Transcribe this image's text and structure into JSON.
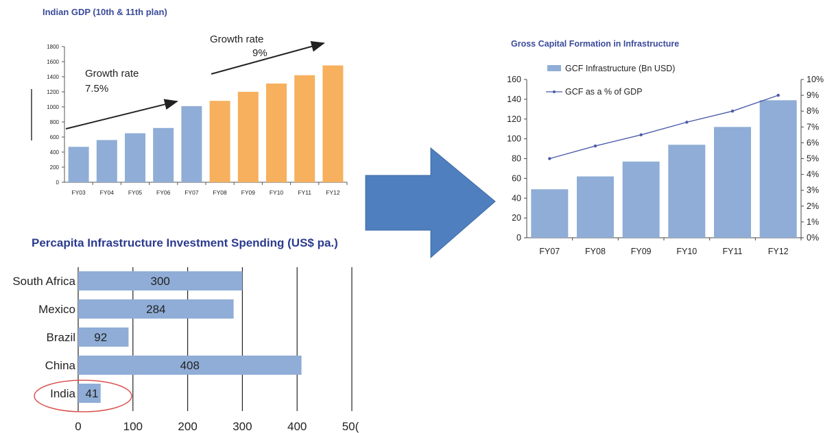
{
  "chart_data": [
    {
      "type": "bar",
      "title": "Indian GDP (10th & 11th plan)",
      "categories": [
        "FY03",
        "FY04",
        "FY05",
        "FY06",
        "FY07",
        "FY08",
        "FY09",
        "FY10",
        "FY11",
        "FY12"
      ],
      "values": [
        470,
        560,
        650,
        720,
        1010,
        1080,
        1200,
        1310,
        1420,
        1550
      ],
      "ylim": [
        0,
        1800
      ],
      "yticks": [
        "0",
        "200",
        "400",
        "600",
        "800",
        "1000",
        "1200",
        "1400",
        "1600",
        "1800"
      ],
      "colors": {
        "tenth_plan": "#8fadd6",
        "eleventh_plan": "#f6b05e"
      },
      "annotations": [
        {
          "line1": "Growth rate",
          "line2": "7.5%"
        },
        {
          "line1": "Growth rate",
          "line2": "9%"
        }
      ]
    },
    {
      "type": "bar",
      "title": "Gross Capital Formation in Infrastructure",
      "categories": [
        "FY07",
        "FY08",
        "FY09",
        "FY10",
        "FY11",
        "FY12"
      ],
      "series": [
        {
          "name": "GCF Infrastructure (Bn USD)",
          "type": "bar",
          "axis": "left",
          "values": [
            49,
            62,
            77,
            94,
            112,
            139
          ],
          "color": "#8fadd6"
        },
        {
          "name": "GCF as a % of GDP",
          "type": "line",
          "axis": "right",
          "values": [
            5.0,
            5.8,
            6.5,
            7.3,
            8.0,
            9.0
          ],
          "color": "#4a5aa8"
        }
      ],
      "ylim": [
        0,
        160
      ],
      "yticks": [
        "0",
        "20",
        "40",
        "60",
        "80",
        "100",
        "120",
        "140",
        "160"
      ],
      "y2lim": [
        0,
        10
      ],
      "y2ticks": [
        "0%",
        "1%",
        "2%",
        "3%",
        "4%",
        "5%",
        "6%",
        "7%",
        "8%",
        "9%",
        "10%"
      ]
    },
    {
      "type": "bar",
      "orientation": "horizontal",
      "title": "Percapita Infrastructure Investment Spending (US$ pa.)",
      "categories": [
        "South Africa",
        "Mexico",
        "Brazil",
        "China",
        "India"
      ],
      "values": [
        300,
        284,
        92,
        408,
        41
      ],
      "labels": [
        "300",
        "284",
        "92",
        "408",
        "41"
      ],
      "xlim": [
        0,
        500
      ],
      "xticks": [
        "0",
        "100",
        "200",
        "300",
        "400",
        "50("
      ],
      "color": "#8fadd6",
      "highlight": "India"
    }
  ],
  "arrow_color": "#4f7fbe"
}
